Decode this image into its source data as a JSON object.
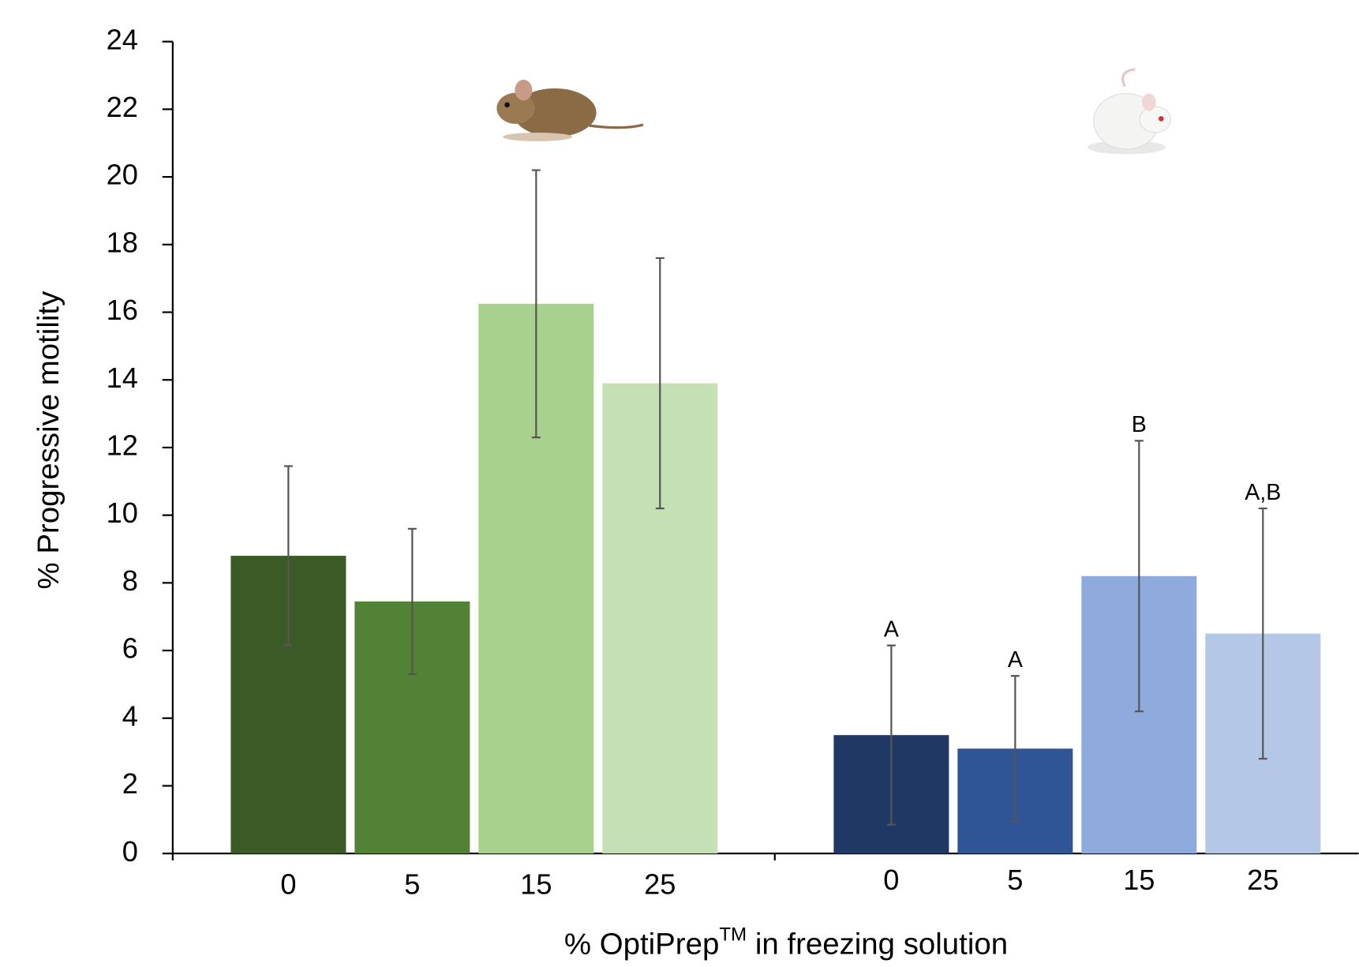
{
  "chart_data": {
    "type": "bar",
    "ylabel": "% Progressive motility",
    "xlabel": {
      "text": "% OptiPrep",
      "sup": "TM",
      "rest": " in freezing solution"
    },
    "ylim": [
      0,
      24
    ],
    "yticks": [
      0,
      2,
      4,
      6,
      8,
      10,
      12,
      14,
      16,
      18,
      20,
      22,
      24
    ],
    "groups": [
      {
        "categories": [
          "0",
          "5",
          "15",
          "25"
        ],
        "colors": [
          "#3b5a26",
          "#528235",
          "#a9d18e",
          "#c5e0b4"
        ],
        "values": [
          8.8,
          7.45,
          16.25,
          13.9
        ],
        "errors": [
          2.65,
          2.15,
          3.95,
          3.7
        ]
      },
      {
        "categories": [
          "0",
          "5",
          "15",
          "25"
        ],
        "colors": [
          "#203864",
          "#2f5597",
          "#8faadc",
          "#b4c7e7"
        ],
        "values": [
          3.5,
          3.1,
          8.2,
          6.5
        ],
        "errors": [
          2.65,
          2.15,
          4.0,
          3.7
        ],
        "annotations": [
          "A",
          "A",
          "B",
          "A,B"
        ]
      }
    ]
  }
}
